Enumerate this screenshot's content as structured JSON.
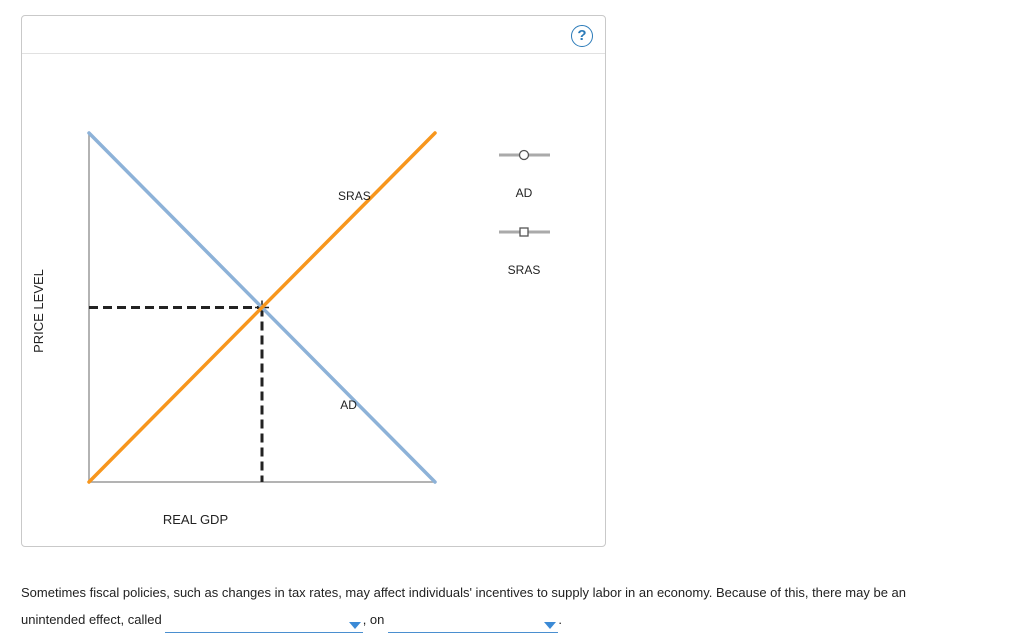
{
  "help": {
    "label": "?"
  },
  "chart_data": {
    "type": "line",
    "xlabel": "REAL GDP",
    "ylabel": "PRICE LEVEL",
    "xlim": [
      0,
      10
    ],
    "ylim": [
      0,
      10
    ],
    "series": [
      {
        "name": "AD",
        "color": "#8db2d8",
        "points": [
          [
            0,
            10
          ],
          [
            10,
            0
          ]
        ]
      },
      {
        "name": "SRAS",
        "color": "#f7961d",
        "points": [
          [
            0,
            0
          ],
          [
            10,
            10
          ]
        ]
      }
    ],
    "equilibrium": {
      "x": 5,
      "y": 5
    },
    "annotations": [
      {
        "text": "SRAS",
        "series": "SRAS",
        "at_x": 8.2
      },
      {
        "text": "AD",
        "series": "AD",
        "at_x": 7.8
      }
    ],
    "palette": [
      {
        "label": "AD",
        "marker": "circle"
      },
      {
        "label": "SRAS",
        "marker": "square"
      }
    ]
  },
  "question": {
    "line1": "Sometimes fiscal policies, such as changes in tax rates, may affect individuals' incentives to supply labor in an economy. Because of this, there may be an",
    "line2_start": "unintended effect, called",
    "line2_mid": ", on",
    "line2_end": ".",
    "dropdown1_value": "",
    "dropdown2_value": ""
  }
}
